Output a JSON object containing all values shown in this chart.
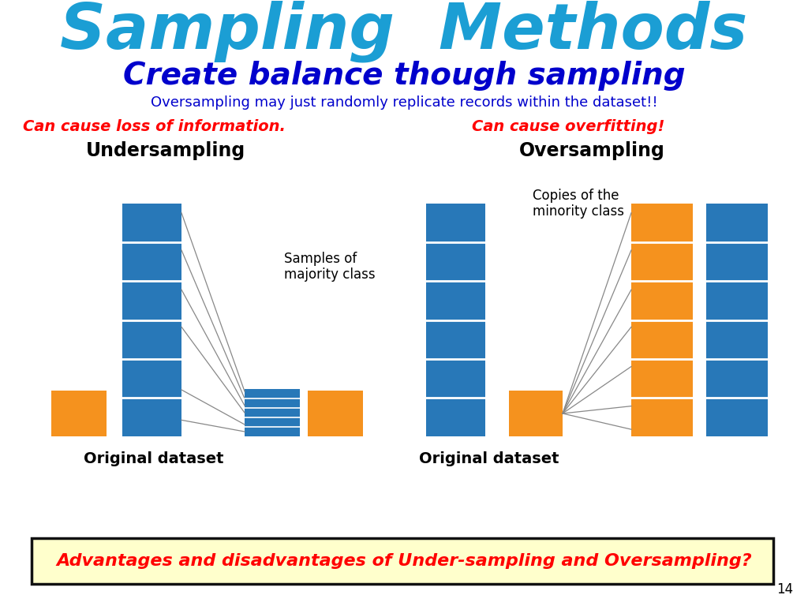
{
  "title": "Sampling  Methods",
  "subtitle": "Create balance though sampling",
  "oversampling_note": "Oversampling may just randomly replicate records within the dataset!!",
  "loss_text": "Can cause loss of information.",
  "overfitting_text": "Can cause overfitting!",
  "undersample_label": "Undersampling",
  "oversample_label": "Oversampling",
  "original_dataset_label": "Original dataset",
  "samples_majority_label": "Samples of\nmajority class",
  "copies_minority_label": "Copies of the\nminority class",
  "bottom_box_text": "Advantages and disadvantages of Under-sampling and Oversampling?",
  "page_number": "14",
  "blue_color": "#2878B8",
  "orange_color": "#F5921E",
  "title_color": "#1B9ED4",
  "subtitle_color": "#0000CC",
  "red_color": "#FF0000",
  "black_color": "#000000",
  "box_bg_color": "#FFFFCC",
  "box_border_color": "#111111",
  "line_color": "#888888"
}
